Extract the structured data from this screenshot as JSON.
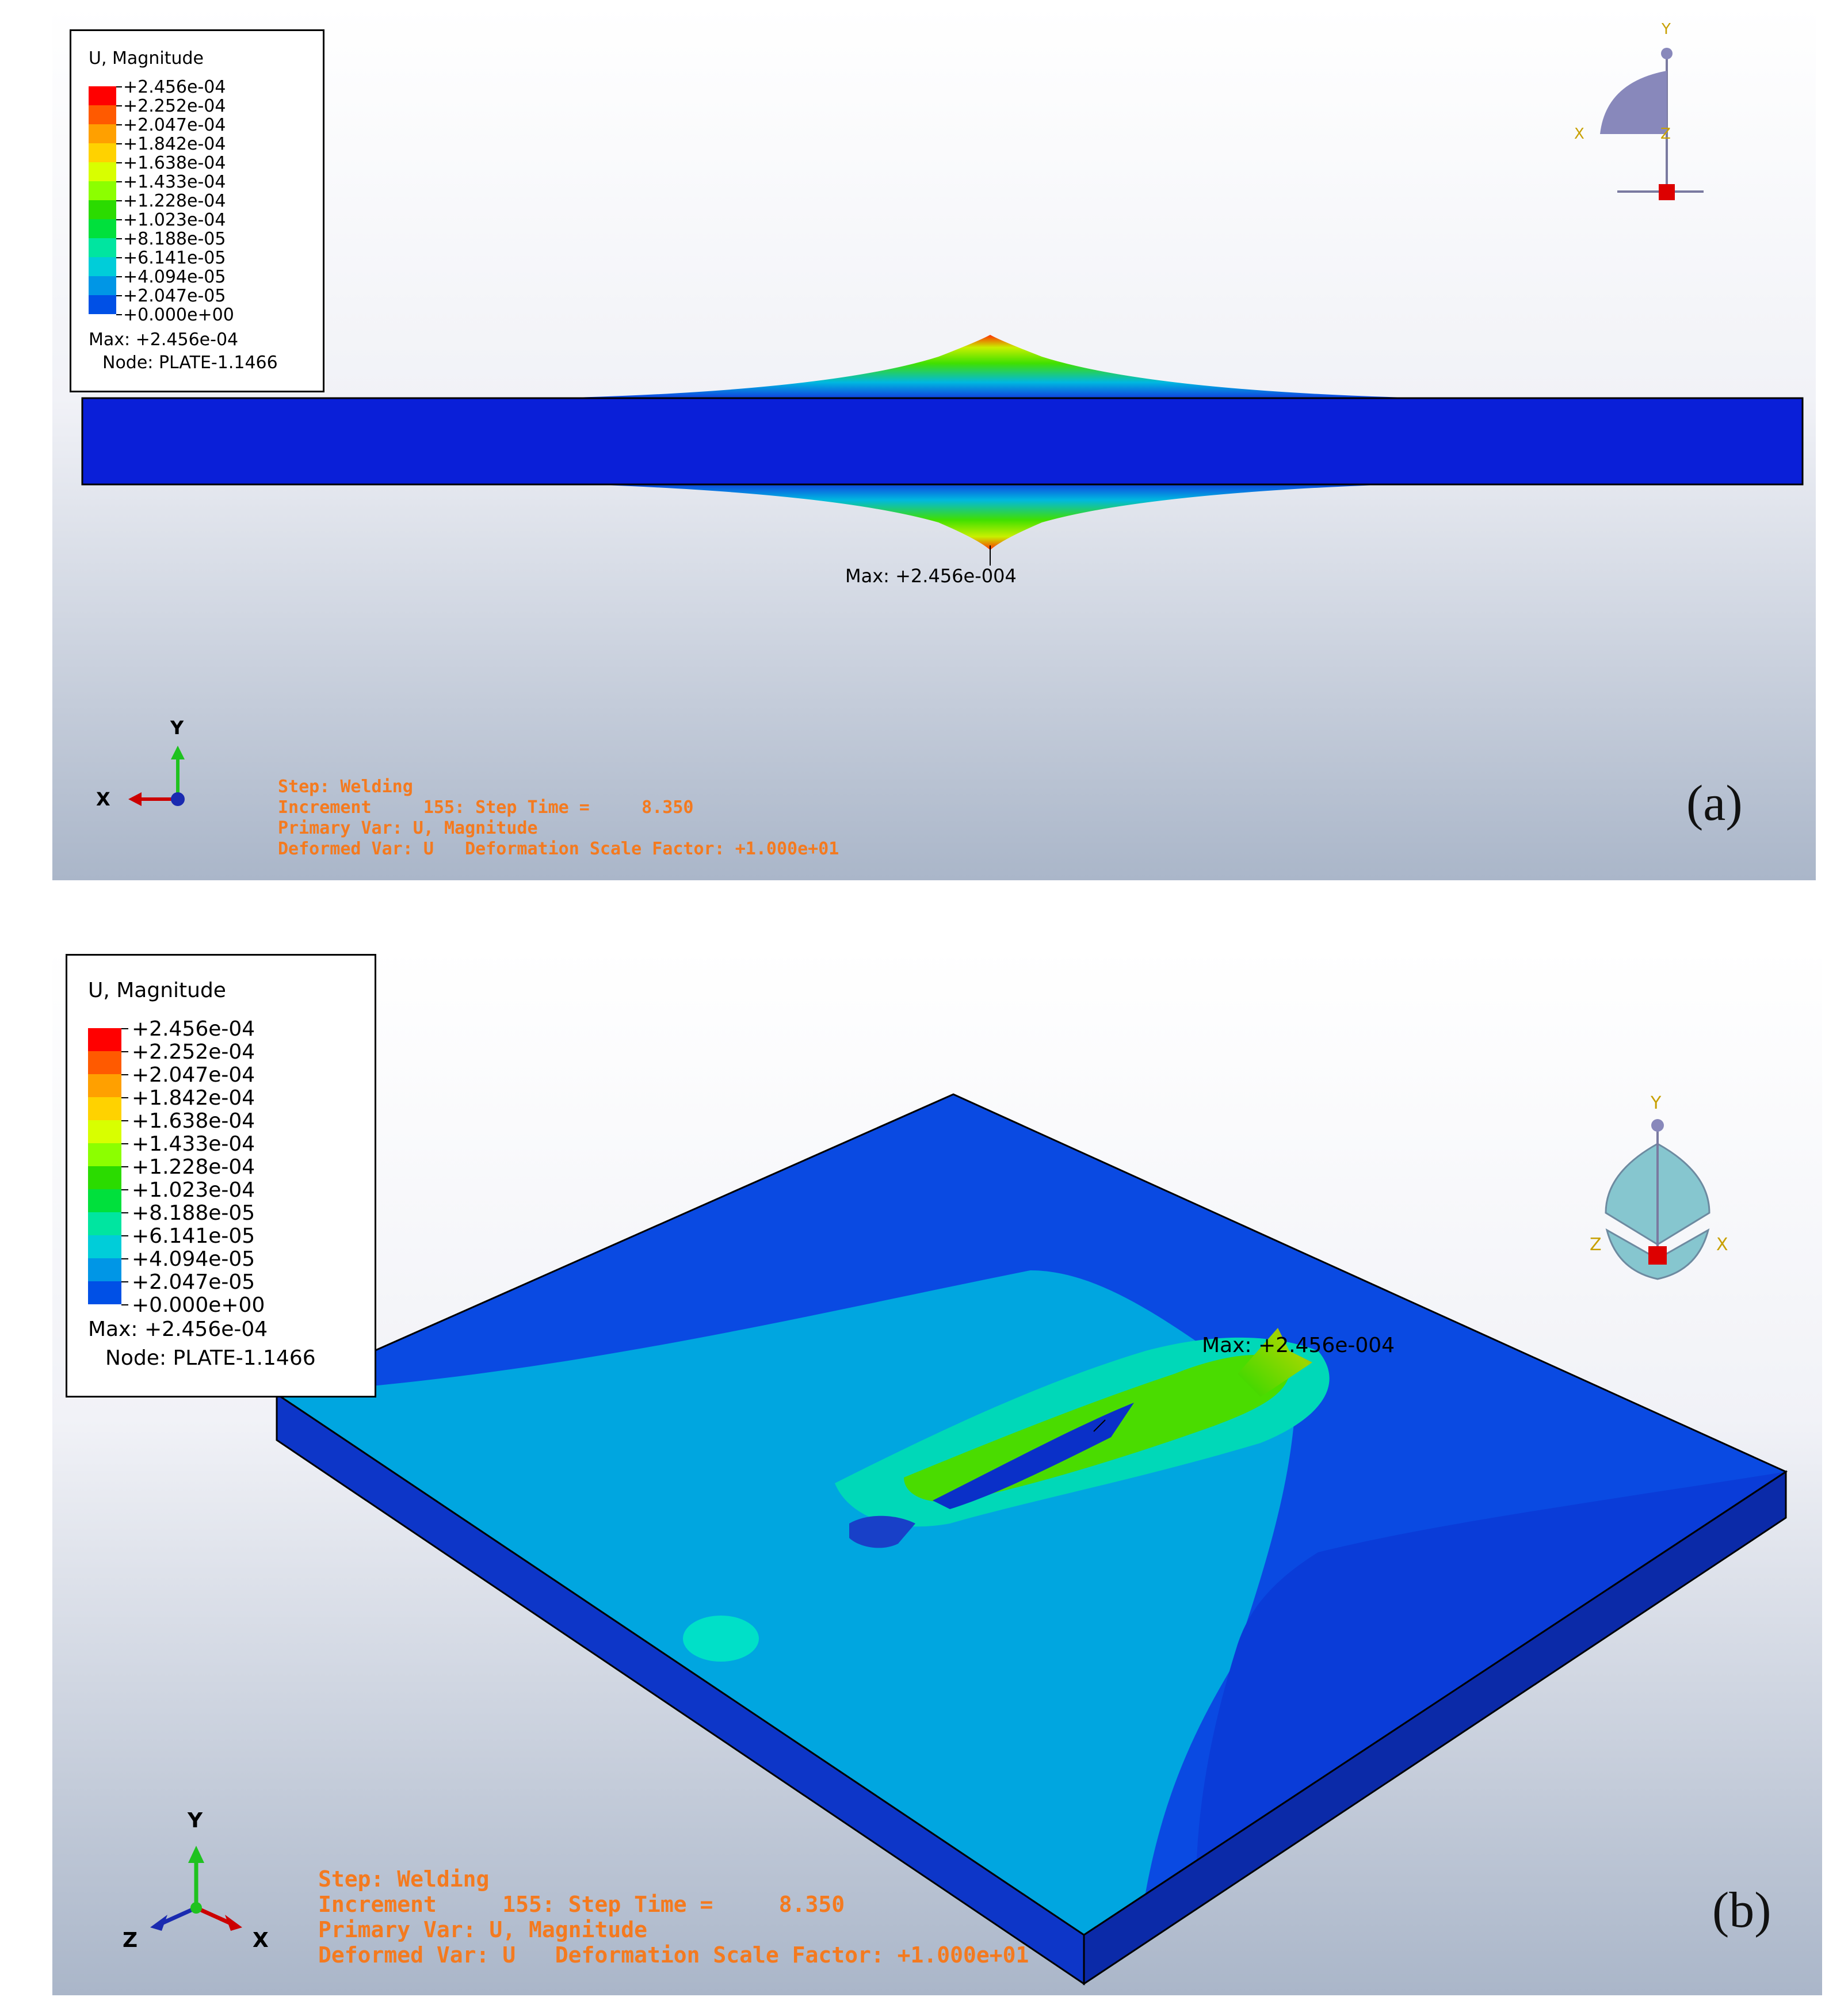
{
  "legend": {
    "title": "U, Magnitude",
    "values": [
      "+2.456e-04",
      "+2.252e-04",
      "+2.047e-04",
      "+1.842e-04",
      "+1.638e-04",
      "+1.433e-04",
      "+1.228e-04",
      "+1.023e-04",
      "+8.188e-05",
      "+6.141e-05",
      "+4.094e-05",
      "+2.047e-05",
      "+0.000e+00"
    ],
    "colors": [
      "#ff0000",
      "#ff5a00",
      "#ffa000",
      "#ffd200",
      "#d8ff00",
      "#8cff00",
      "#2bdb00",
      "#00e03c",
      "#00e5a0",
      "#00cdd9",
      "#0096e6",
      "#0050e6",
      "#0000e0"
    ],
    "max_line": "Max: +2.456e-04",
    "node_line": "Node: PLATE-1.1466"
  },
  "panel_a": {
    "label": "(a)",
    "max_marker": "Max: +2.456e-004",
    "triad": {
      "y": "Y",
      "x": "X"
    },
    "view_cube": {
      "y": "Y",
      "x": "X",
      "z": "Z"
    }
  },
  "panel_b": {
    "label": "(b)",
    "max_marker": "Max: +2.456e-004",
    "triad": {
      "y": "Y",
      "x": "X",
      "z": "Z"
    },
    "view_cube": {
      "y": "Y",
      "x": "X",
      "z": "Z"
    }
  },
  "step_info": {
    "step": "Step: Welding",
    "increment": "Increment     155: Step Time =     8.350",
    "primary": "Primary Var: U, Magnitude",
    "deformed": "Deformed Var: U   Deformation Scale Factor: +1.000e+01"
  }
}
